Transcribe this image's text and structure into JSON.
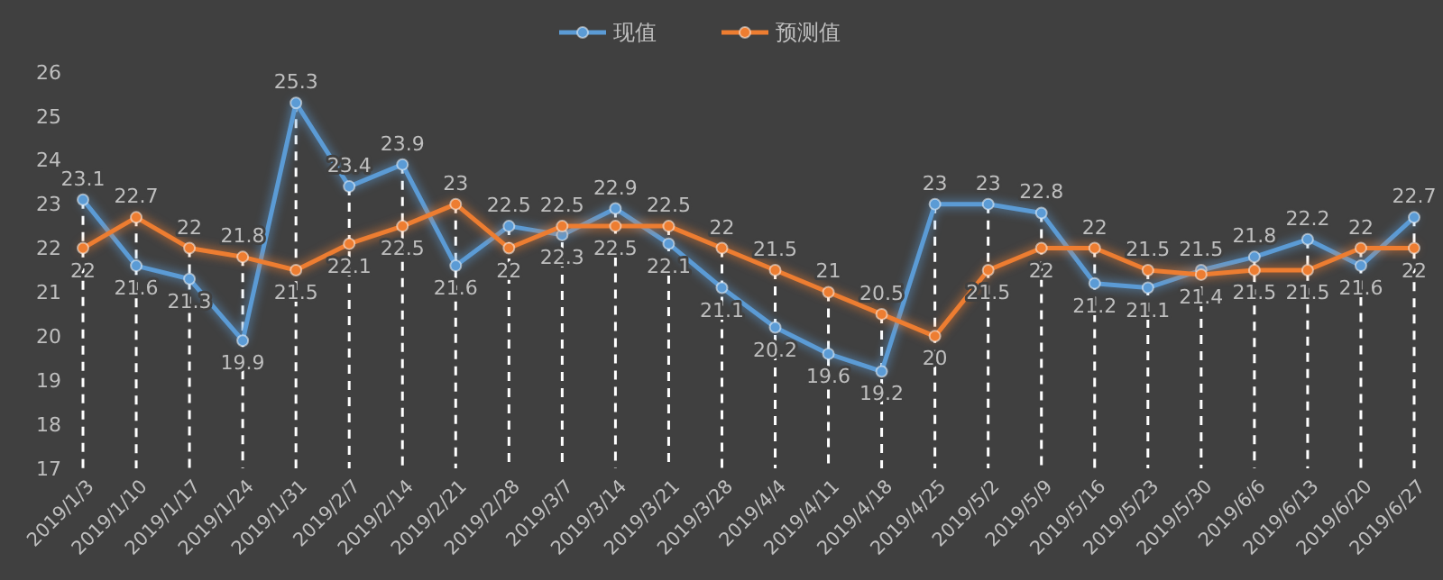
{
  "chart_data": {
    "type": "line",
    "categories": [
      "2019/1/3",
      "2019/1/10",
      "2019/1/17",
      "2019/1/24",
      "2019/1/31",
      "2019/2/7",
      "2019/2/14",
      "2019/2/21",
      "2019/2/28",
      "2019/3/7",
      "2019/3/14",
      "2019/3/21",
      "2019/3/28",
      "2019/4/4",
      "2019/4/11",
      "2019/4/18",
      "2019/4/25",
      "2019/5/2",
      "2019/5/9",
      "2019/5/16",
      "2019/5/23",
      "2019/5/30",
      "2019/6/6",
      "2019/6/13",
      "2019/6/20",
      "2019/6/27"
    ],
    "series": [
      {
        "name": "现值",
        "color": "#5b9bd5",
        "values": [
          23.1,
          21.6,
          21.3,
          19.9,
          25.3,
          23.4,
          23.9,
          21.6,
          22.5,
          22.3,
          22.9,
          22.1,
          21.1,
          20.2,
          19.6,
          19.2,
          23,
          23,
          22.8,
          21.2,
          21.1,
          21.5,
          21.8,
          22.2,
          21.6,
          22.7
        ]
      },
      {
        "name": "预测值",
        "color": "#ed7d31",
        "values": [
          22,
          22.7,
          22,
          21.8,
          21.5,
          22.1,
          22.5,
          23,
          22,
          22.5,
          22.5,
          22.5,
          22,
          21.5,
          21,
          20.5,
          20,
          21.5,
          22,
          22,
          21.5,
          21.4,
          21.5,
          21.5,
          22,
          22
        ]
      }
    ],
    "ylim": [
      17,
      26
    ],
    "yticks": [
      17,
      18,
      19,
      20,
      21,
      22,
      23,
      24,
      25,
      26
    ],
    "grid": "x",
    "legend": "top",
    "marker": "circle",
    "line_style": "solid",
    "data_labels": true
  }
}
